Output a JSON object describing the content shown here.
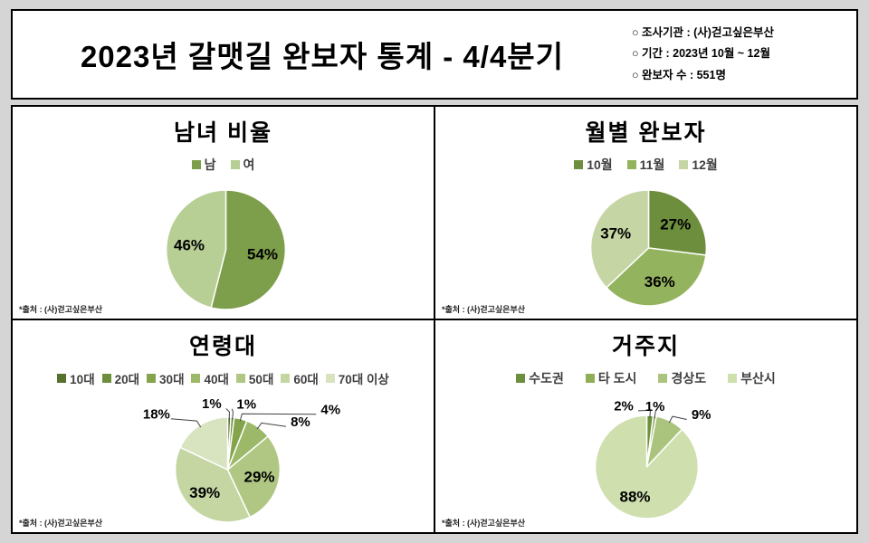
{
  "header": {
    "title": "2023년 갈맷길 완보자 통계 - 4/4분기",
    "info": [
      "○ 조사기관 : (사)걷고싶은부산",
      "○ 기간 : 2023년 10월 ~ 12월",
      "○ 완보자 수 : 551명"
    ]
  },
  "footnote": "*출처 : (사)걷고싶은부산",
  "chart_data": [
    {
      "type": "pie",
      "title": "남녀 비율",
      "categories": [
        "남",
        "여"
      ],
      "values": [
        54,
        46
      ],
      "unit": "%",
      "colors": [
        "#7d9e4a",
        "#b7ce95"
      ],
      "legend_position": "top",
      "start_angle": "12-oclock",
      "direction": "clockwise",
      "data_labels": [
        "54%",
        "46%"
      ]
    },
    {
      "type": "pie",
      "title": "월별 완보자",
      "categories": [
        "10월",
        "11월",
        "12월"
      ],
      "values": [
        27,
        36,
        37
      ],
      "unit": "%",
      "colors": [
        "#6d8e3c",
        "#94b35e",
        "#c5d6a4"
      ],
      "legend_position": "top",
      "start_angle": "12-oclock",
      "direction": "clockwise",
      "data_labels": [
        "27%",
        "36%",
        "37%"
      ]
    },
    {
      "type": "pie",
      "title": "연령대",
      "categories": [
        "10대",
        "20대",
        "30대",
        "40대",
        "50대",
        "60대",
        "70대 이상"
      ],
      "values": [
        1,
        1,
        4,
        8,
        29,
        39,
        18
      ],
      "unit": "%",
      "colors": [
        "#55712c",
        "#6d8e3a",
        "#84a44c",
        "#9bb968",
        "#b0c784",
        "#c5d6a3",
        "#d8e3c0"
      ],
      "legend_position": "top",
      "start_angle": "12-oclock",
      "direction": "clockwise",
      "data_labels": [
        "1%",
        "1%",
        "4%",
        "8%",
        "29%",
        "39%",
        "18%"
      ]
    },
    {
      "type": "pie",
      "title": "거주지",
      "categories": [
        "수도권",
        "타 도시",
        "경상도",
        "부산시"
      ],
      "values": [
        2,
        1,
        9,
        88
      ],
      "unit": "%",
      "colors": [
        "#6d8e3c",
        "#8fae55",
        "#abc47d",
        "#cfdfae"
      ],
      "legend_position": "top",
      "start_angle": "12-oclock",
      "direction": "clockwise",
      "data_labels": [
        "2%",
        "1%",
        "9%",
        "88%"
      ]
    }
  ]
}
